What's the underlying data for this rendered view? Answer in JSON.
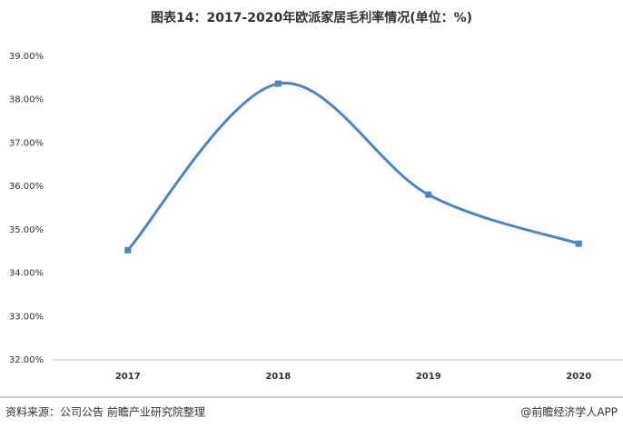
{
  "chart_data": {
    "type": "line",
    "title": "图表14：2017-2020年欧派家居毛利率情况(单位：%)",
    "categories": [
      "2017",
      "2018",
      "2019",
      "2020"
    ],
    "series": [
      {
        "color": "#4a84cf",
        "values": [
          34.53,
          38.37,
          35.81,
          34.68
        ]
      }
    ],
    "ylim": [
      32,
      39
    ],
    "yticks": [
      {
        "value": 32,
        "label": "32.00%"
      },
      {
        "value": 33,
        "label": "33.00%"
      },
      {
        "value": 34,
        "label": "34.00%"
      },
      {
        "value": 35,
        "label": "35.00%"
      },
      {
        "value": 36,
        "label": "36.00%"
      },
      {
        "value": 37,
        "label": "37.00%"
      },
      {
        "value": 38,
        "label": "38.00%"
      },
      {
        "value": 39,
        "label": "39.00%"
      }
    ],
    "grid": false,
    "smooth": true,
    "source": "资料来源：公司公告 前瞻产业研究院整理",
    "credit": "@前瞻经济学人APP"
  }
}
